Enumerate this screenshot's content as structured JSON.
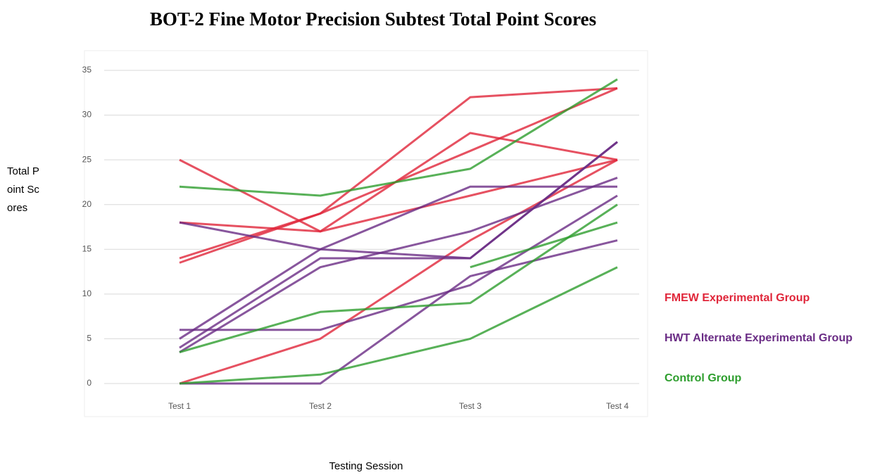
{
  "chart_data": {
    "type": "line",
    "title": "BOT-2 Fine Motor Precision Subtest Total Point Scores",
    "x_label": "Testing Session",
    "y_label": "Total Point Scores",
    "categories": [
      "Test 1",
      "Test 2",
      "Test 3",
      "Test 4"
    ],
    "ylim": [
      0,
      35
    ],
    "yticks": [
      0,
      5,
      10,
      15,
      20,
      25,
      30,
      35
    ],
    "grid": true,
    "legend": "right",
    "series": [
      {
        "name": "FMEW Experimental Group",
        "color": "#e0263a",
        "lines": [
          [
            25,
            17,
            28,
            25
          ],
          [
            13.5,
            19,
            32,
            33
          ],
          [
            18,
            17,
            21,
            25
          ],
          [
            0,
            5,
            16,
            25
          ],
          [
            14,
            19,
            26,
            33
          ]
        ]
      },
      {
        "name": "HWT Alternate Experimental Group",
        "color": "#6a2c85",
        "lines": [
          [
            6,
            6,
            11,
            21
          ],
          [
            5,
            15,
            22,
            22
          ],
          [
            3.5,
            13,
            17,
            23
          ],
          [
            4,
            14,
            14,
            27
          ],
          [
            0,
            0,
            12,
            16
          ],
          [
            18,
            15,
            14,
            27
          ]
        ]
      },
      {
        "name": "Control Group",
        "color": "#2e9e2e",
        "lines": [
          [
            22,
            21,
            24,
            34
          ],
          [
            3.5,
            8,
            9,
            20
          ],
          [
            0,
            1,
            5,
            13
          ],
          [
            null,
            null,
            13,
            18
          ]
        ]
      }
    ]
  }
}
